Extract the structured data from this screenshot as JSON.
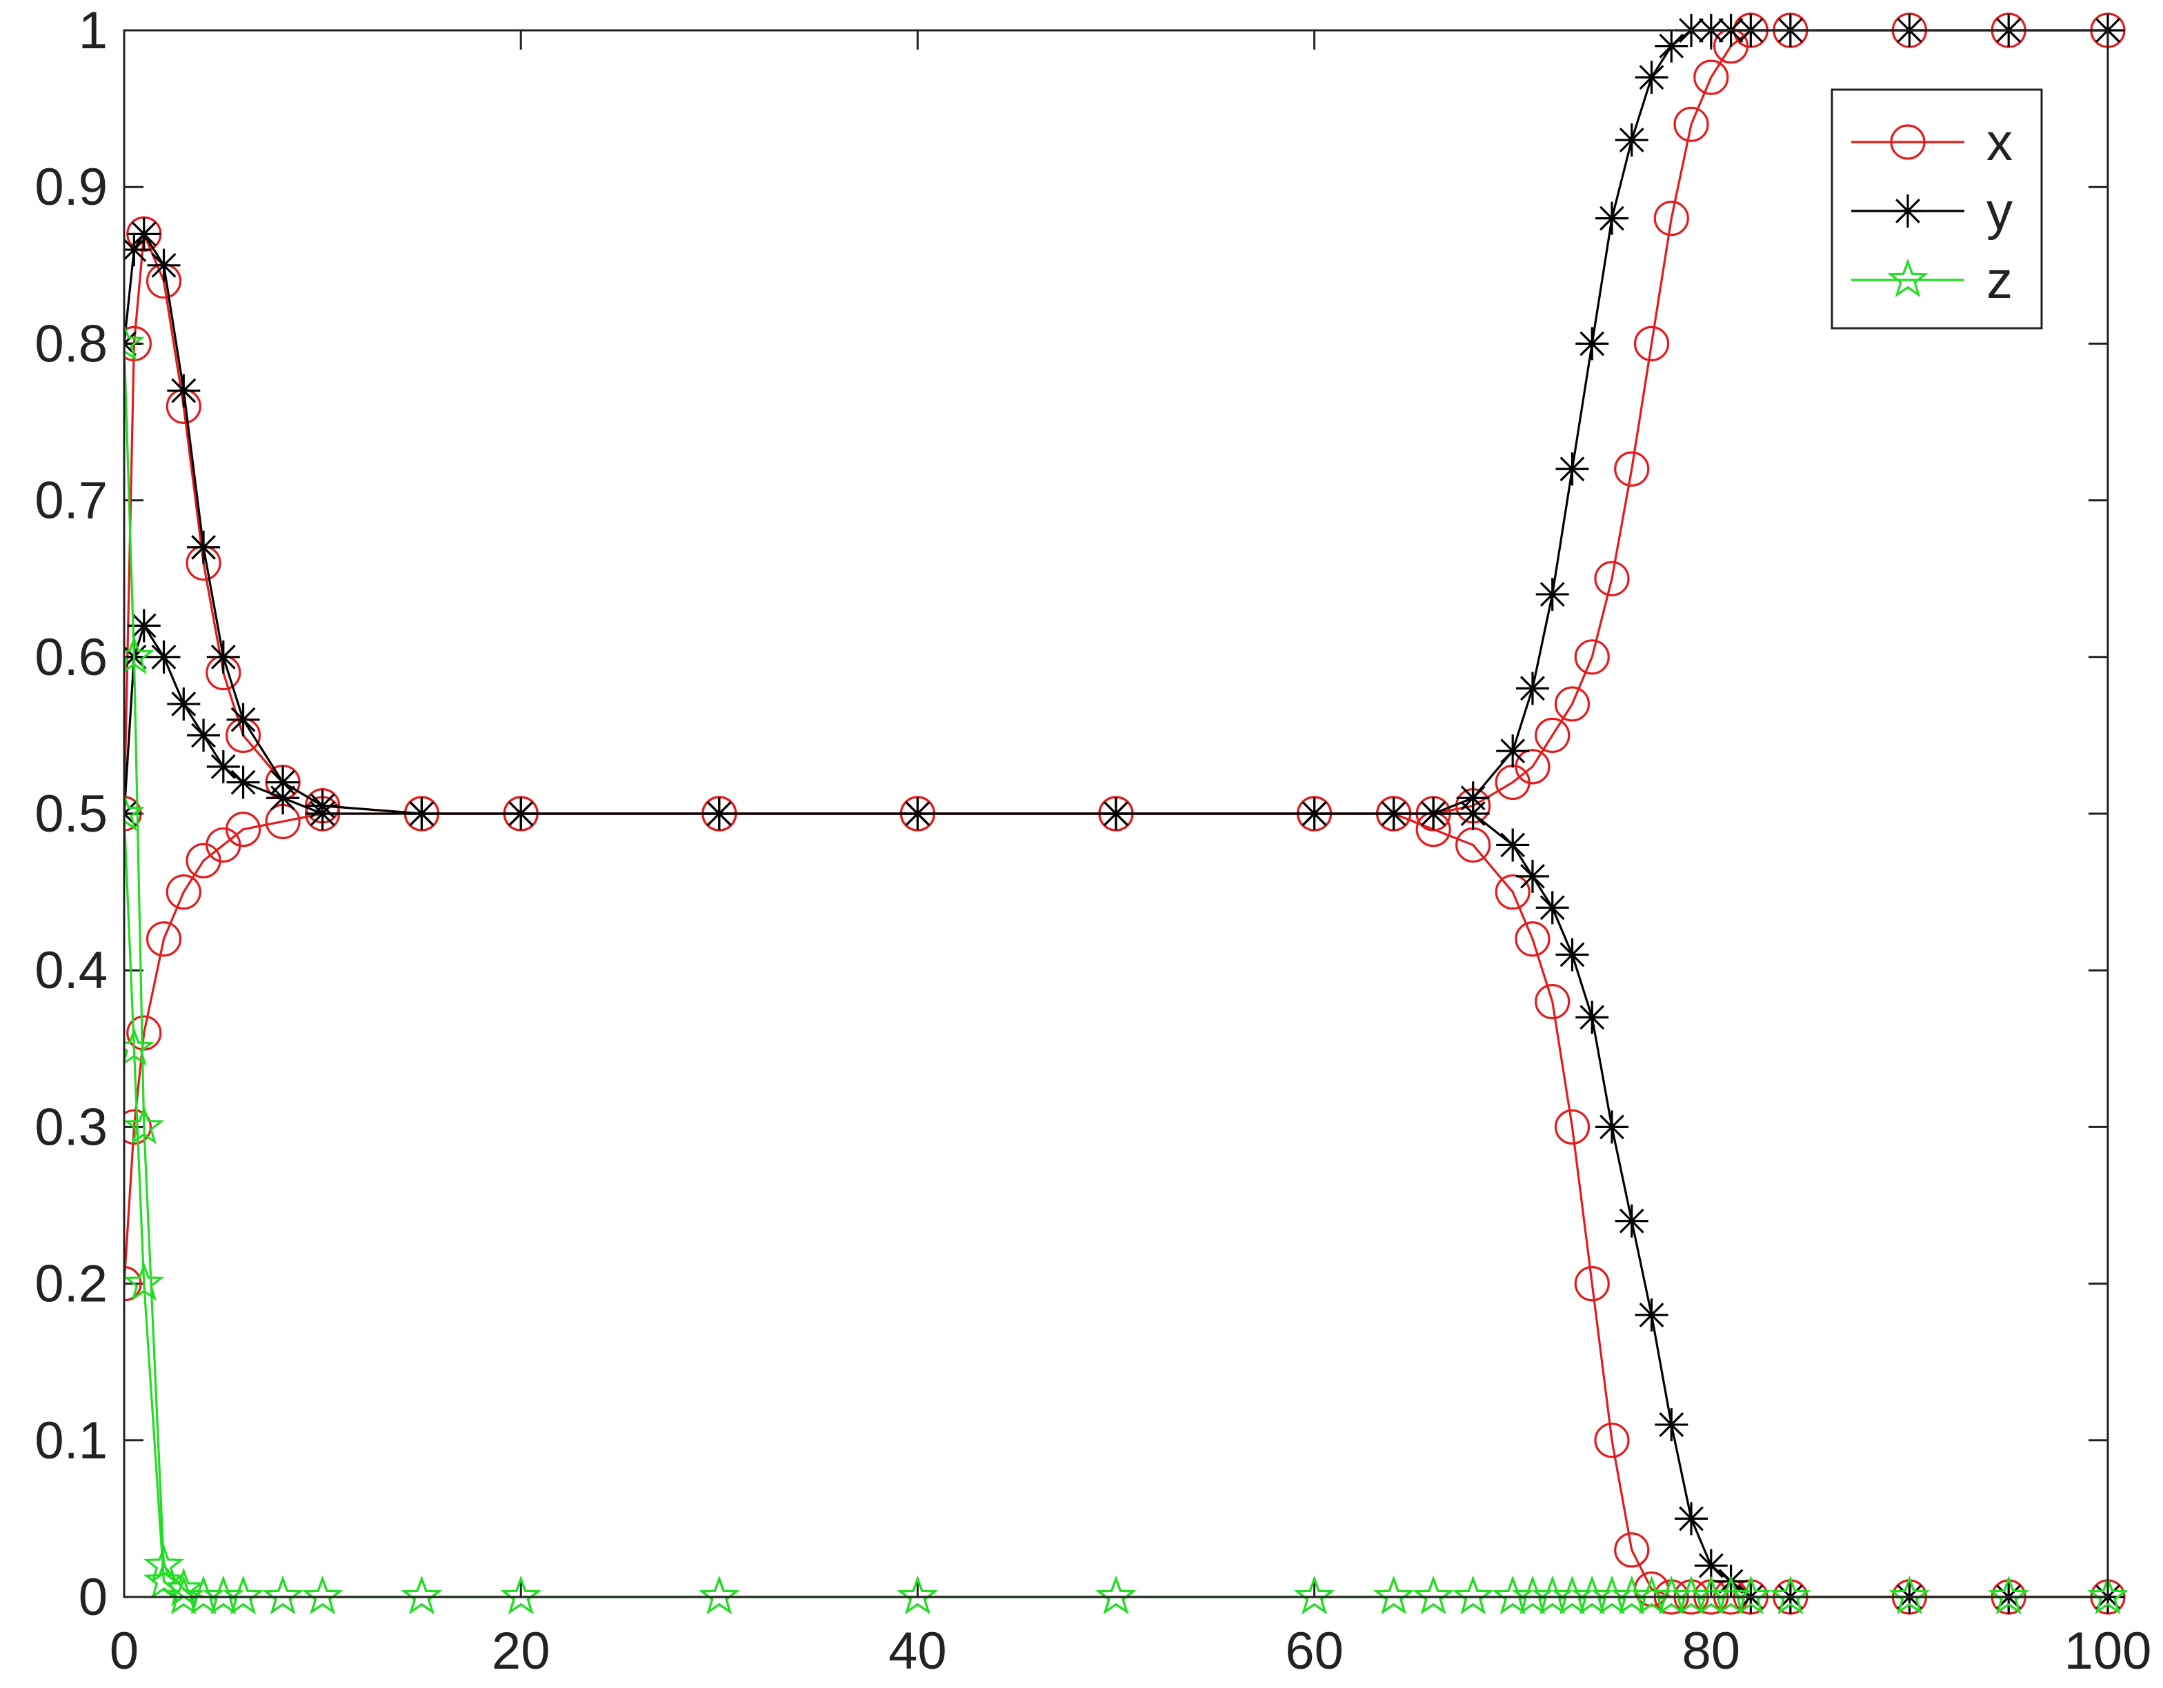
{
  "chart_data": {
    "type": "line",
    "xlim": [
      0,
      100
    ],
    "ylim": [
      0,
      1
    ],
    "xticks": [
      0,
      20,
      40,
      60,
      80,
      100
    ],
    "yticks": [
      0,
      0.1,
      0.2,
      0.3,
      0.4,
      0.5,
      0.6,
      0.7,
      0.8,
      0.9,
      1
    ],
    "legend": "upper right",
    "x": [
      0,
      0.5,
      1,
      2,
      3,
      4,
      5,
      6,
      8,
      10,
      15,
      20,
      30,
      40,
      50,
      60,
      64,
      66,
      68,
      70,
      71,
      72,
      73,
      74,
      75,
      76,
      77,
      78,
      79,
      80,
      81,
      82,
      84,
      90,
      95,
      100
    ],
    "series": [
      {
        "name": "x",
        "color": "#e41a1c",
        "marker": "circle",
        "lines": [
          [
            0.5,
            0.8,
            0.87,
            0.84,
            0.76,
            0.66,
            0.59,
            0.55,
            0.52,
            0.505,
            0.5,
            0.5,
            0.5,
            0.5,
            0.5,
            0.5,
            0.5,
            0.5,
            0.505,
            0.52,
            0.53,
            0.55,
            0.57,
            0.6,
            0.65,
            0.72,
            0.8,
            0.88,
            0.94,
            0.97,
            0.99,
            1,
            1,
            1,
            1,
            1
          ],
          [
            0.2,
            0.3,
            0.36,
            0.42,
            0.45,
            0.47,
            0.48,
            0.49,
            0.495,
            0.5,
            0.5,
            0.5,
            0.5,
            0.5,
            0.5,
            0.5,
            0.5,
            0.49,
            0.48,
            0.45,
            0.42,
            0.38,
            0.3,
            0.2,
            0.1,
            0.03,
            0.005,
            0,
            0,
            0,
            0,
            0,
            0,
            0,
            0,
            0
          ]
        ]
      },
      {
        "name": "y",
        "color": "#000000",
        "marker": "asterisk",
        "lines": [
          [
            0.8,
            0.86,
            0.87,
            0.85,
            0.77,
            0.67,
            0.6,
            0.56,
            0.52,
            0.505,
            0.5,
            0.5,
            0.5,
            0.5,
            0.5,
            0.5,
            0.5,
            0.5,
            0.51,
            0.54,
            0.58,
            0.64,
            0.72,
            0.8,
            0.88,
            0.93,
            0.97,
            0.99,
            1,
            1,
            1,
            1,
            1,
            1,
            1,
            1
          ],
          [
            0.5,
            0.6,
            0.62,
            0.6,
            0.57,
            0.55,
            0.53,
            0.52,
            0.51,
            0.5,
            0.5,
            0.5,
            0.5,
            0.5,
            0.5,
            0.5,
            0.5,
            0.5,
            0.5,
            0.48,
            0.46,
            0.44,
            0.41,
            0.37,
            0.3,
            0.24,
            0.18,
            0.11,
            0.05,
            0.02,
            0.01,
            0,
            0,
            0,
            0,
            0
          ]
        ]
      },
      {
        "name": "z",
        "color": "#22dd22",
        "marker": "star",
        "lines": [
          [
            0.8,
            0.6,
            0.3,
            0.02,
            0.005,
            0,
            0,
            0,
            0,
            0,
            0,
            0,
            0,
            0,
            0,
            0,
            0,
            0,
            0,
            0,
            0,
            0,
            0,
            0,
            0,
            0,
            0,
            0,
            0,
            0,
            0,
            0,
            0,
            0,
            0,
            0
          ],
          [
            0.5,
            0.35,
            0.2,
            0.01,
            0,
            0,
            0,
            0,
            0,
            0,
            0,
            0,
            0,
            0,
            0,
            0,
            0,
            0,
            0,
            0,
            0,
            0,
            0,
            0,
            0,
            0,
            0,
            0,
            0,
            0,
            0,
            0,
            0,
            0,
            0,
            0
          ]
        ]
      }
    ]
  }
}
